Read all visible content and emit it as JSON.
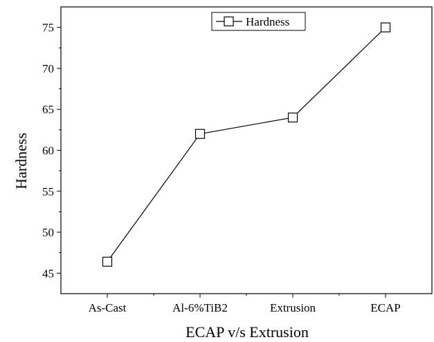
{
  "chart_data": {
    "type": "line",
    "title": "",
    "xlabel": "ECAP v/s Extrusion",
    "ylabel": "Hardness",
    "categories": [
      "As-Cast",
      "Al-6%TiB2",
      "Extrusion",
      "ECAP"
    ],
    "series": [
      {
        "name": "Hardness",
        "values": [
          46.4,
          62.0,
          64.0,
          75.0
        ],
        "marker": "open-square",
        "color": "#000000"
      }
    ],
    "ylim": [
      42.5,
      77.5
    ],
    "yticks": [
      45,
      50,
      55,
      60,
      65,
      70,
      75
    ],
    "grid": false,
    "legend_position": "top-center"
  }
}
